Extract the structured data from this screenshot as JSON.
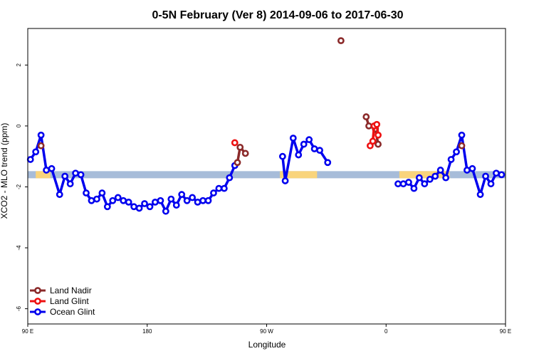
{
  "chart_data": {
    "type": "line",
    "title": "0-5N February (Ver 8)   2014-09-06 to 2017-06-30",
    "xlabel": "Longitude",
    "ylabel": "XCO2 - MLO trend (ppm)",
    "xlim": [
      90,
      450
    ],
    "ylim": [
      -6.5,
      3.2
    ],
    "x_ticks": [
      {
        "value": 90,
        "label": "90 E"
      },
      {
        "value": 180,
        "label": "180"
      },
      {
        "value": 270,
        "label": "90 W"
      },
      {
        "value": 360,
        "label": "0"
      },
      {
        "value": 450,
        "label": "90 E"
      },
      {
        "value": 540,
        "label": "180"
      }
    ],
    "y_ticks": [
      {
        "value": 2,
        "label": "2"
      },
      {
        "value": 0,
        "label": "0"
      },
      {
        "value": -2,
        "label": "-2"
      },
      {
        "value": -4,
        "label": "-4"
      },
      {
        "value": -6,
        "label": "-6"
      }
    ],
    "band": {
      "y": -1.6,
      "ocean_color": "#a7bcd9",
      "land_color": "#f9d47c",
      "land_segments": [
        [
          96,
          107
        ],
        [
          280,
          308
        ],
        [
          370,
          408
        ],
        [
          487,
          495
        ]
      ]
    },
    "legend": {
      "position": "bottom-left",
      "entries": [
        {
          "label": "Land Nadir",
          "color": "#8b2a2a"
        },
        {
          "label": "Land Glint",
          "color": "#ee1111"
        },
        {
          "label": "Ocean Glint",
          "color": "#0000ee"
        }
      ]
    },
    "series": [
      {
        "name": "Ocean Glint",
        "color": "#0000ee",
        "segments": [
          [
            [
              92,
              -1.1
            ],
            [
              96,
              -0.85
            ],
            [
              100,
              -0.3
            ],
            [
              104,
              -1.45
            ],
            [
              108,
              -1.4
            ],
            [
              114,
              -2.25
            ],
            [
              118,
              -1.65
            ],
            [
              122,
              -1.9
            ],
            [
              126,
              -1.55
            ],
            [
              130,
              -1.6
            ],
            [
              134,
              -2.2
            ],
            [
              138,
              -2.45
            ],
            [
              142,
              -2.4
            ],
            [
              146,
              -2.2
            ],
            [
              150,
              -2.65
            ],
            [
              154,
              -2.45
            ],
            [
              158,
              -2.35
            ],
            [
              162,
              -2.45
            ],
            [
              166,
              -2.5
            ],
            [
              170,
              -2.65
            ],
            [
              174,
              -2.7
            ],
            [
              178,
              -2.55
            ],
            [
              182,
              -2.65
            ],
            [
              186,
              -2.5
            ],
            [
              190,
              -2.45
            ],
            [
              194,
              -2.8
            ],
            [
              198,
              -2.4
            ],
            [
              202,
              -2.6
            ],
            [
              206,
              -2.25
            ],
            [
              210,
              -2.45
            ],
            [
              214,
              -2.35
            ],
            [
              218,
              -2.5
            ],
            [
              222,
              -2.45
            ],
            [
              226,
              -2.45
            ],
            [
              230,
              -2.2
            ],
            [
              234,
              -2.05
            ],
            [
              238,
              -2.05
            ],
            [
              242,
              -1.7
            ],
            [
              246,
              -1.3
            ]
          ],
          [
            [
              282,
              -1.0
            ],
            [
              284,
              -1.8
            ],
            [
              290,
              -0.4
            ],
            [
              294,
              -0.95
            ],
            [
              298,
              -0.6
            ],
            [
              302,
              -0.45
            ],
            [
              306,
              -0.75
            ],
            [
              310,
              -0.8
            ],
            [
              316,
              -1.2
            ]
          ],
          [
            [
              369,
              -1.9
            ],
            [
              373,
              -1.9
            ],
            [
              377,
              -1.85
            ],
            [
              381,
              -2.05
            ],
            [
              385,
              -1.7
            ],
            [
              389,
              -1.9
            ],
            [
              393,
              -1.75
            ],
            [
              397,
              -1.65
            ],
            [
              401,
              -1.45
            ],
            [
              405,
              -1.7
            ],
            [
              409,
              -1.1
            ],
            [
              413,
              -0.85
            ],
            [
              417,
              -0.3
            ],
            [
              421,
              -1.45
            ],
            [
              425,
              -1.4
            ],
            [
              431,
              -2.25
            ],
            [
              435,
              -1.65
            ],
            [
              439,
              -1.9
            ],
            [
              443,
              -1.55
            ],
            [
              447,
              -1.6
            ],
            [
              451,
              -2.2
            ],
            [
              455,
              -2.45
            ],
            [
              459,
              -2.4
            ],
            [
              463,
              -2.2
            ],
            [
              467,
              -2.65
            ],
            [
              471,
              -2.45
            ],
            [
              475,
              -2.35
            ],
            [
              479,
              -2.45
            ]
          ]
        ]
      },
      {
        "name": "Land Nadir",
        "color": "#8b2a2a",
        "segments": [
          [
            [
              100,
              -0.65
            ]
          ],
          [
            [
              248,
              -1.2
            ],
            [
              250,
              -0.7
            ],
            [
              254,
              -0.9
            ]
          ],
          [
            [
              326,
              2.8
            ]
          ],
          [
            [
              345,
              0.3
            ],
            [
              347,
              0.0
            ],
            [
              352,
              -0.1
            ],
            [
              354,
              -0.6
            ]
          ],
          [
            [
              417,
              -0.65
            ]
          ]
        ]
      },
      {
        "name": "Land Glint",
        "color": "#ee1111",
        "segments": [
          [
            [
              246,
              -0.55
            ]
          ],
          [
            [
              348,
              -0.65
            ],
            [
              350,
              -0.5
            ],
            [
              351,
              0.0
            ],
            [
              353,
              0.05
            ],
            [
              354,
              -0.3
            ]
          ]
        ]
      }
    ]
  }
}
